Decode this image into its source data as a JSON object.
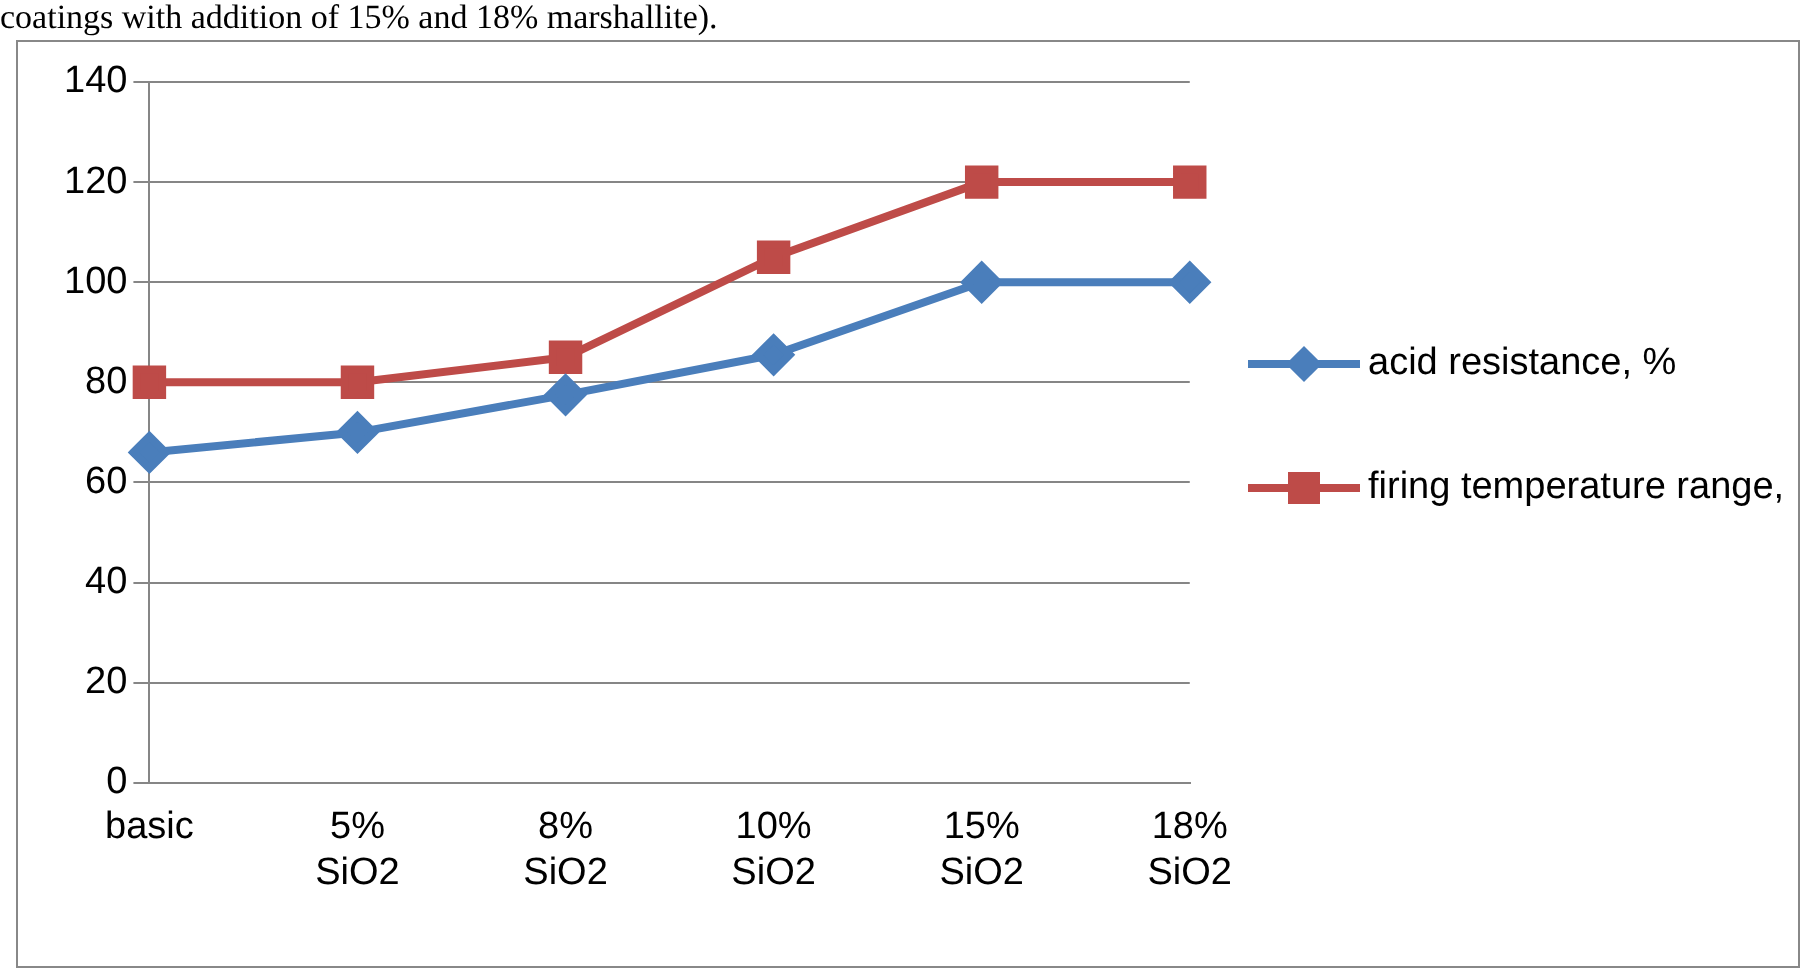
{
  "chart_data": {
    "type": "line",
    "annotations": [
      "coatings with addition of 15% and 18% marshallite)."
    ],
    "categories": [
      "basic",
      "5% SiO2",
      "8% SiO2",
      "10% SiO2",
      "15% SiO2",
      "18% SiO2"
    ],
    "series": [
      {
        "name": "acid resistance, %",
        "color": "#4a7ebb",
        "marker": "diamond",
        "values": [
          66,
          70,
          77.5,
          85.5,
          100,
          100
        ]
      },
      {
        "name": "firing temperature range,",
        "color": "#be4b48",
        "marker": "square",
        "values": [
          80,
          80,
          85,
          105,
          120,
          120
        ]
      }
    ],
    "ylim": [
      0,
      140
    ],
    "yticks": [
      0,
      20,
      40,
      60,
      80,
      100,
      120,
      140
    ],
    "grid": "y",
    "legend": "right",
    "line_style": "solid"
  }
}
